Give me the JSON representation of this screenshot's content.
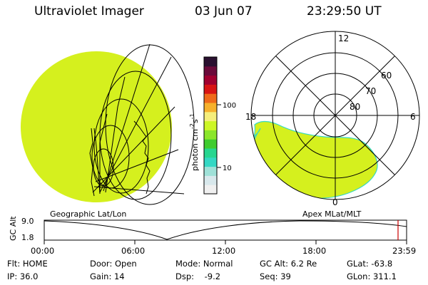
{
  "header": {
    "instrument": "Ultraviolet Imager",
    "date": "03 Jun 07",
    "time": "23:29:50 UT"
  },
  "colorbar": {
    "unit_label": "photon cm",
    "unit_exp1": "-2",
    "unit_mid": "s",
    "unit_exp2": "-1",
    "tick_100": "100",
    "tick_10": "10",
    "colors": [
      "#f0f0f0",
      "#d8e8ec",
      "#9fe1d8",
      "#34d8c4",
      "#27d690",
      "#3fcc2f",
      "#8be62b",
      "#cdf626",
      "#f5ee7b",
      "#f6b12c",
      "#ef6a1a",
      "#d81414",
      "#a00030",
      "#6a0a3a",
      "#2a1030"
    ]
  },
  "left_map": {
    "fill_color": "#d5f01e",
    "caption": "Geographic Lat/Lon"
  },
  "right_polar": {
    "fill_color": "#d5f01e",
    "ring_labels": [
      "60",
      "70",
      "80"
    ],
    "mlt_labels": {
      "top": "12",
      "left": "18",
      "right": "6",
      "bottom": "0"
    },
    "caption": "Apex MLat/MLT"
  },
  "altitude_plot": {
    "axis_label": "GC Alt",
    "y_max": "9.0",
    "y_min": "1.8",
    "x_ticks": [
      "00:00",
      "06:00",
      "12:00",
      "18:00",
      "23:59"
    ],
    "marker_color": "#cc0000"
  },
  "status": {
    "flt": "Flt: HOME",
    "ip": "IP: 36.0",
    "door": "Door: Open",
    "gain": "Gain: 14",
    "mode": "Mode: Normal",
    "dsp": "Dsp:    -9.2",
    "gc_alt": "GC Alt: 6.2 Re",
    "seq": "Seq: 39",
    "glat": "GLat: -63.8",
    "glon": "GLon: 311.1"
  }
}
